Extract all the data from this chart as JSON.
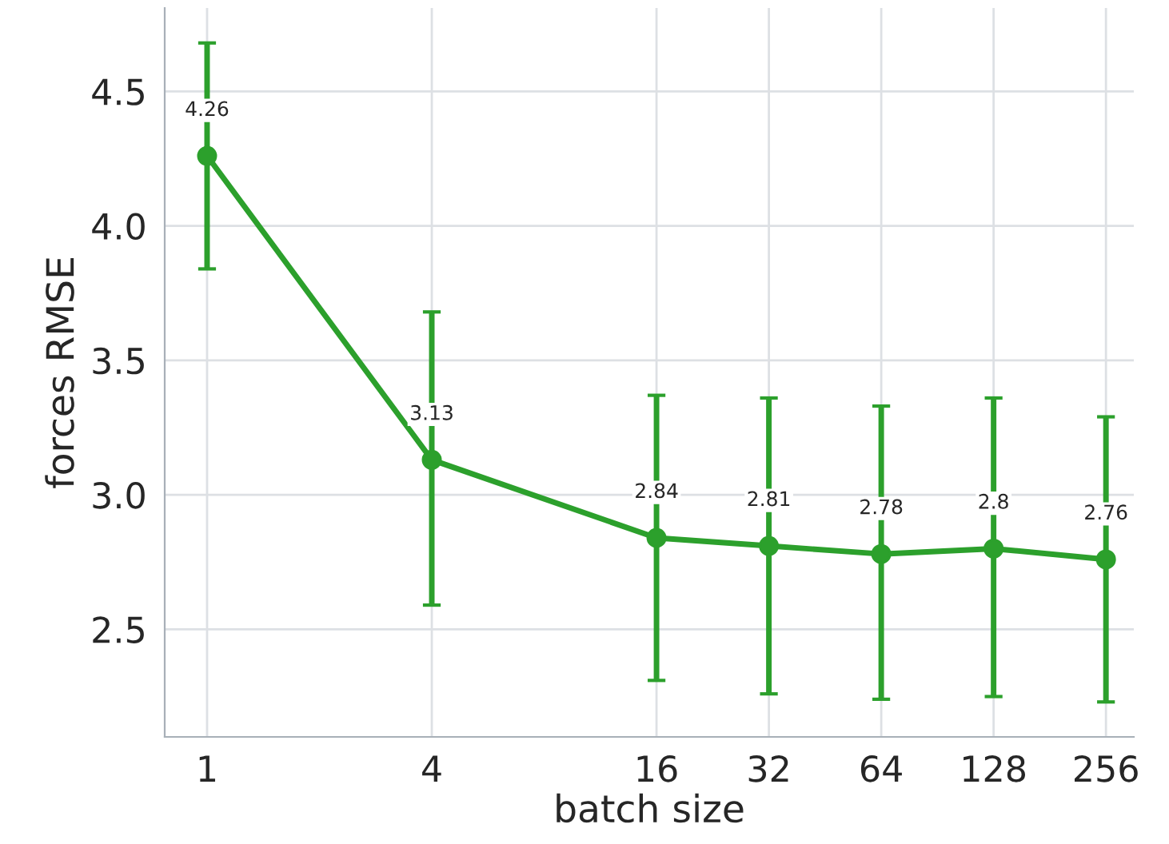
{
  "chart_data": {
    "type": "line",
    "xlabel": "batch size",
    "ylabel": "forces RMSE",
    "x": [
      1,
      4,
      16,
      32,
      64,
      128,
      256
    ],
    "series": [
      {
        "color": "#2ca02c",
        "values": [
          4.26,
          3.13,
          2.84,
          2.81,
          2.78,
          2.8,
          2.76
        ],
        "errors": [
          [
            3.84,
            4.68
          ],
          [
            2.59,
            3.68
          ],
          [
            2.31,
            3.37
          ],
          [
            2.26,
            3.36
          ],
          [
            2.24,
            3.33
          ],
          [
            2.25,
            3.36
          ],
          [
            2.23,
            3.29
          ]
        ]
      }
    ],
    "log": "x",
    "xlim": [
      0.77,
      304
    ],
    "xticks": [
      1,
      4,
      16,
      32,
      64,
      128,
      256
    ],
    "ylim": [
      2.1,
      4.81
    ],
    "yticks": [
      2.5,
      {
        "value": 3,
        "label": "3.0"
      },
      3.5,
      {
        "value": 4,
        "label": "4.0"
      },
      4.5
    ],
    "grid": true,
    "marker": "circle",
    "line_style": "solid",
    "data_labels": true
  }
}
